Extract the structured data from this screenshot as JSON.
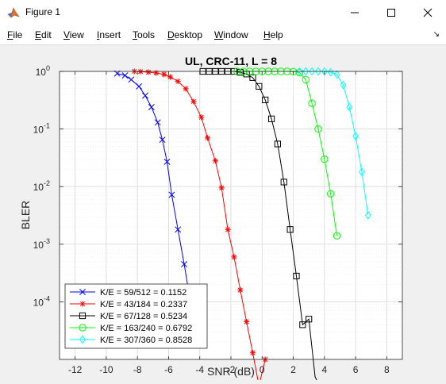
{
  "window": {
    "title": "Figure 1"
  },
  "menu": [
    "File",
    "Edit",
    "View",
    "Insert",
    "Tools",
    "Desktop",
    "Window",
    "Help"
  ],
  "icons": {
    "app": "matlab-icon",
    "minimize": "minimize-icon",
    "maximize": "maximize-icon",
    "close": "close-icon",
    "dock": "dock-arrow-icon"
  },
  "chart_data": {
    "type": "line",
    "title": "UL, CRC-11, L = 8",
    "xlabel": "SNR (dB)",
    "ylabel": "BLER",
    "xlim": [
      -13,
      9
    ],
    "ylim_exp": [
      -5,
      0
    ],
    "yscale": "log",
    "grid": true,
    "minor_grid": true,
    "legend_position": "bottom-left",
    "xticks": [
      -12,
      -10,
      -8,
      -6,
      -4,
      -2,
      0,
      2,
      4,
      6,
      8
    ],
    "ytick_exponents": [
      -4,
      -3,
      -2,
      -1,
      0
    ],
    "series": [
      {
        "name": "K/E = 59/512 = 0.1152",
        "color": "#0000ff",
        "marker": "x",
        "x": [
          -9.3,
          -8.8,
          -8.4,
          -7.9,
          -7.5,
          -7.1,
          -6.7,
          -6.4,
          -6.1,
          -5.8,
          -5.4,
          -5.0,
          -4.6,
          -4.2,
          -3.9
        ],
        "y": [
          0.92,
          0.85,
          0.72,
          0.55,
          0.38,
          0.24,
          0.13,
          0.065,
          0.027,
          0.0072,
          0.0018,
          0.00045,
          0.0001,
          4e-05,
          2e-05
        ]
      },
      {
        "name": "K/E = 43/184 = 0.2337",
        "color": "#ff0000",
        "marker": "star",
        "x": [
          -8.2,
          -7.8,
          -7.3,
          -6.8,
          -6.3,
          -5.9,
          -5.4,
          -4.9,
          -4.4,
          -3.9,
          -3.5,
          -3.0,
          -2.6,
          -2.2,
          -1.8,
          -1.4,
          -1.0,
          -0.6,
          -0.2,
          0.2
        ],
        "y": [
          1.0,
          0.99,
          0.97,
          0.94,
          0.89,
          0.8,
          0.67,
          0.5,
          0.3,
          0.16,
          0.07,
          0.028,
          0.0095,
          0.0018,
          0.0006,
          0.00016,
          4.5e-05,
          1.3e-05,
          3.5e-06,
          1e-05
        ]
      },
      {
        "name": "K/E = 67/128 = 0.5234",
        "color": "#000000",
        "marker": "square",
        "x": [
          -3.8,
          -3.4,
          -3.0,
          -2.6,
          -2.2,
          -1.8,
          -1.4,
          -1.0,
          -0.6,
          -0.2,
          0.2,
          0.6,
          1.0,
          1.4,
          1.8,
          2.2,
          2.6,
          3.0,
          3.4,
          3.8
        ],
        "y": [
          1.0,
          1.0,
          1.0,
          1.0,
          1.0,
          1.0,
          0.96,
          0.9,
          0.78,
          0.55,
          0.32,
          0.15,
          0.055,
          0.012,
          0.0018,
          0.00028,
          4e-05,
          5e-05,
          5e-06,
          3e-06
        ]
      },
      {
        "name": "K/E = 163/240 = 0.6792",
        "color": "#00ff00",
        "marker": "circle",
        "x": [
          -1.6,
          -1.2,
          -0.8,
          -0.4,
          0.0,
          0.4,
          0.8,
          1.2,
          1.6,
          2.0,
          2.4,
          2.8,
          3.2,
          3.6,
          4.0,
          4.4,
          4.8
        ],
        "y": [
          1.0,
          1.0,
          1.0,
          1.0,
          1.0,
          1.0,
          1.0,
          1.0,
          1.0,
          0.99,
          0.95,
          0.72,
          0.28,
          0.1,
          0.03,
          0.0075,
          0.0014
        ]
      },
      {
        "name": "K/E = 307/360 = 0.8528",
        "color": "#00ffff",
        "marker": "diamond",
        "x": [
          2.4,
          2.8,
          3.2,
          3.6,
          4.0,
          4.4,
          4.8,
          5.2,
          5.6,
          6.0,
          6.4,
          6.8
        ],
        "y": [
          1.0,
          1.0,
          1.0,
          1.0,
          1.0,
          0.97,
          0.88,
          0.58,
          0.24,
          0.075,
          0.018,
          0.0032
        ]
      }
    ]
  }
}
